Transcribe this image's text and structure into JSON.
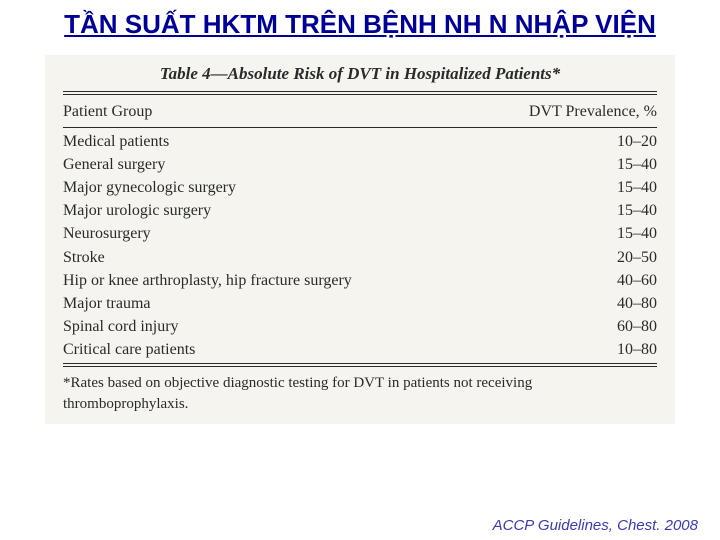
{
  "title": "TẦN SUẤT HKTM TRÊN BỆNH NH N NHẬP VIỆN",
  "table": {
    "caption": "Table 4—Absolute Risk of DVT in Hospitalized Patients*",
    "col1_header": "Patient Group",
    "col2_header": "DVT Prevalence, %",
    "rows": [
      {
        "group": "Medical patients",
        "prev": "10–20"
      },
      {
        "group": "General surgery",
        "prev": "15–40"
      },
      {
        "group": "Major gynecologic surgery",
        "prev": "15–40"
      },
      {
        "group": "Major urologic surgery",
        "prev": "15–40"
      },
      {
        "group": "Neurosurgery",
        "prev": "15–40"
      },
      {
        "group": "Stroke",
        "prev": "20–50"
      },
      {
        "group": "Hip or knee arthroplasty, hip fracture surgery",
        "prev": "40–60"
      },
      {
        "group": "Major trauma",
        "prev": "40–80"
      },
      {
        "group": "Spinal cord injury",
        "prev": "60–80"
      },
      {
        "group": "Critical care patients",
        "prev": "10–80"
      }
    ],
    "footnote": "*Rates based on objective diagnostic testing for DVT in patients not receiving thromboprophylaxis."
  },
  "citation": "ACCP Guidelines, Chest. 2008",
  "colors": {
    "slide_bg": "#ffffff",
    "outer_bg": "#000000",
    "title_color": "#000099",
    "table_bg": "#f5f4ef",
    "text_color": "#2a2a2a",
    "citation_color": "#3b3bb0"
  }
}
